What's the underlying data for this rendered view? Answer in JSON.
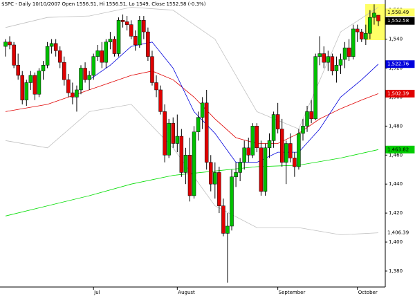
{
  "chart_data": {
    "type": "candlestick",
    "title": "$SPC - Daily 10/10/2007 Open 1556.51, Hi 1556.51, Lo 1549, Close 1552.58 (-0.3%)",
    "ylim": [
      1369,
      1567
    ],
    "yticks": [
      {
        "value": 1380,
        "label": "1,380"
      },
      {
        "value": 1400,
        "label": "1,400"
      },
      {
        "value": 1420,
        "label": "1,420"
      },
      {
        "value": 1440,
        "label": "1,440"
      },
      {
        "value": 1460,
        "label": "1,460"
      },
      {
        "value": 1480,
        "label": "1,480"
      },
      {
        "value": 1500,
        "label": "1,500"
      },
      {
        "value": 1520,
        "label": "1,520"
      },
      {
        "value": 1540,
        "label": "1,540"
      },
      {
        "value": 1560,
        "label": "1,560"
      }
    ],
    "categories": [
      null,
      null,
      null,
      null,
      null,
      null,
      null,
      null,
      null,
      null,
      null,
      null,
      null,
      null,
      null,
      null,
      null,
      null,
      null,
      null,
      null,
      "Jul",
      null,
      null,
      null,
      null,
      null,
      null,
      null,
      null,
      null,
      null,
      null,
      null,
      null,
      null,
      null,
      null,
      null,
      null,
      null,
      "August",
      null,
      null,
      null,
      null,
      null,
      null,
      null,
      null,
      null,
      null,
      null,
      null,
      null,
      null,
      null,
      null,
      null,
      null,
      null,
      null,
      null,
      null,
      null,
      "September",
      null,
      null,
      null,
      null,
      null,
      null,
      null,
      null,
      null,
      null,
      null,
      null,
      null,
      null,
      null,
      null,
      null,
      null,
      "October",
      null,
      null,
      null,
      null,
      null
    ],
    "up_color": "#00c000",
    "down_color": "#e00000",
    "ohlc": [
      [
        1535,
        1540,
        1528,
        1538
      ],
      [
        1538,
        1542,
        1533,
        1536
      ],
      [
        1536,
        1538,
        1520,
        1522
      ],
      [
        1522,
        1530,
        1512,
        1515
      ],
      [
        1515,
        1518,
        1495,
        1498
      ],
      [
        1498,
        1512,
        1494,
        1510
      ],
      [
        1510,
        1518,
        1505,
        1515
      ],
      [
        1515,
        1517,
        1498,
        1502
      ],
      [
        1502,
        1520,
        1500,
        1518
      ],
      [
        1518,
        1525,
        1512,
        1522
      ],
      [
        1522,
        1538,
        1520,
        1535
      ],
      [
        1535,
        1540,
        1530,
        1537
      ],
      [
        1537,
        1540,
        1528,
        1532
      ],
      [
        1532,
        1535,
        1520,
        1524
      ],
      [
        1524,
        1528,
        1508,
        1512
      ],
      [
        1512,
        1516,
        1500,
        1503
      ],
      [
        1503,
        1510,
        1495,
        1500
      ],
      [
        1500,
        1508,
        1490,
        1505
      ],
      [
        1505,
        1522,
        1502,
        1520
      ],
      [
        1520,
        1524,
        1510,
        1512
      ],
      [
        1512,
        1518,
        1505,
        1515
      ],
      [
        1515,
        1530,
        1512,
        1528
      ],
      [
        1528,
        1536,
        1525,
        1532
      ],
      [
        1532,
        1538,
        1520,
        1524
      ],
      [
        1524,
        1540,
        1520,
        1538
      ],
      [
        1538,
        1545,
        1533,
        1540
      ],
      [
        1540,
        1542,
        1528,
        1530
      ],
      [
        1530,
        1555,
        1528,
        1553
      ],
      [
        1553,
        1557,
        1548,
        1552
      ],
      [
        1552,
        1556,
        1546,
        1550
      ],
      [
        1550,
        1553,
        1540,
        1542
      ],
      [
        1542,
        1546,
        1532,
        1536
      ],
      [
        1536,
        1556,
        1534,
        1553
      ],
      [
        1553,
        1556,
        1540,
        1545
      ],
      [
        1545,
        1548,
        1525,
        1528
      ],
      [
        1528,
        1532,
        1508,
        1510
      ],
      [
        1510,
        1515,
        1500,
        1505
      ],
      [
        1505,
        1508,
        1488,
        1490
      ],
      [
        1490,
        1495,
        1455,
        1460
      ],
      [
        1460,
        1485,
        1458,
        1482
      ],
      [
        1482,
        1486,
        1465,
        1468
      ],
      [
        1468,
        1488,
        1462,
        1473
      ],
      [
        1473,
        1478,
        1445,
        1448
      ],
      [
        1448,
        1465,
        1440,
        1460
      ],
      [
        1460,
        1472,
        1428,
        1432
      ],
      [
        1432,
        1480,
        1430,
        1476
      ],
      [
        1476,
        1490,
        1470,
        1486
      ],
      [
        1486,
        1500,
        1478,
        1496
      ],
      [
        1496,
        1505,
        1450,
        1455
      ],
      [
        1455,
        1460,
        1435,
        1440
      ],
      [
        1440,
        1455,
        1430,
        1448
      ],
      [
        1448,
        1452,
        1420,
        1425
      ],
      [
        1425,
        1430,
        1404,
        1406
      ],
      [
        1406,
        1420,
        1372,
        1411
      ],
      [
        1411,
        1450,
        1408,
        1445
      ],
      [
        1445,
        1455,
        1438,
        1448
      ],
      [
        1448,
        1458,
        1442,
        1455
      ],
      [
        1455,
        1470,
        1450,
        1465
      ],
      [
        1465,
        1472,
        1455,
        1460
      ],
      [
        1460,
        1482,
        1458,
        1480
      ],
      [
        1480,
        1482,
        1462,
        1465
      ],
      [
        1465,
        1470,
        1432,
        1435
      ],
      [
        1435,
        1468,
        1432,
        1465
      ],
      [
        1465,
        1475,
        1458,
        1470
      ],
      [
        1470,
        1490,
        1465,
        1488
      ],
      [
        1488,
        1496,
        1475,
        1478
      ],
      [
        1478,
        1485,
        1452,
        1455
      ],
      [
        1455,
        1470,
        1440,
        1468
      ],
      [
        1468,
        1475,
        1455,
        1458
      ],
      [
        1458,
        1462,
        1445,
        1452
      ],
      [
        1452,
        1478,
        1450,
        1475
      ],
      [
        1475,
        1485,
        1470,
        1480
      ],
      [
        1480,
        1494,
        1476,
        1490
      ],
      [
        1490,
        1498,
        1482,
        1485
      ],
      [
        1485,
        1530,
        1484,
        1528
      ],
      [
        1528,
        1542,
        1522,
        1530
      ],
      [
        1530,
        1535,
        1520,
        1524
      ],
      [
        1524,
        1532,
        1518,
        1528
      ],
      [
        1528,
        1530,
        1515,
        1518
      ],
      [
        1518,
        1528,
        1510,
        1522
      ],
      [
        1522,
        1530,
        1516,
        1526
      ],
      [
        1526,
        1538,
        1520,
        1534
      ],
      [
        1534,
        1540,
        1525,
        1528
      ],
      [
        1528,
        1550,
        1526,
        1547
      ],
      [
        1547,
        1550,
        1538,
        1545
      ],
      [
        1545,
        1547,
        1538,
        1540
      ],
      [
        1540,
        1550,
        1536,
        1544
      ],
      [
        1544,
        1560,
        1540,
        1555
      ],
      [
        1555,
        1564,
        1550,
        1558
      ],
      [
        1556.51,
        1556.51,
        1549,
        1552.58
      ]
    ],
    "overlays": [
      {
        "color": "#c0c0c0",
        "x": [
          0,
          10,
          20,
          30,
          40,
          50,
          60,
          70,
          80,
          89
        ],
        "values": [
          1548,
          1555,
          1556,
          1562,
          1560,
          1540,
          1490,
          1478,
          1545,
          1562
        ]
      },
      {
        "color": "#c0c0c0",
        "x": [
          0,
          10,
          20,
          30,
          40,
          50,
          60,
          70,
          80,
          89
        ],
        "values": [
          1470,
          1465,
          1490,
          1495,
          1465,
          1425,
          1410,
          1410,
          1405,
          1406.39
        ]
      },
      {
        "color": "#00dd00",
        "x": [
          0,
          10,
          20,
          30,
          40,
          50,
          60,
          70,
          80,
          89
        ],
        "values": [
          1418,
          1425,
          1432,
          1440,
          1446,
          1449,
          1452,
          1453,
          1458,
          1463.82
        ]
      },
      {
        "color": "#e00000",
        "x": [
          0,
          10,
          20,
          30,
          35,
          40,
          45,
          50,
          55,
          60,
          65,
          70,
          75,
          80,
          85,
          89
        ],
        "values": [
          1490,
          1495,
          1505,
          1515,
          1518,
          1512,
          1500,
          1485,
          1472,
          1468,
          1468,
          1475,
          1485,
          1492,
          1498,
          1502.39
        ]
      },
      {
        "color": "#0000dd",
        "x": [
          20,
          25,
          30,
          35,
          40,
          45,
          50,
          55,
          60,
          65,
          70,
          75,
          80,
          85,
          89
        ],
        "values": [
          1512,
          1522,
          1535,
          1538,
          1520,
          1490,
          1475,
          1455,
          1455,
          1462,
          1462,
          1478,
          1500,
          1512,
          1522.76
        ]
      }
    ],
    "price_labels": [
      {
        "value": 1558.49,
        "label": "1,558.49",
        "color": "#ffff66",
        "text_color": "#000000"
      },
      {
        "value": 1552.58,
        "label": "1,552.58",
        "color": "#000000",
        "text_color": "#ffffff"
      },
      {
        "value": 1522.76,
        "label": "1,522.76",
        "color": "#0000dd",
        "text_color": "#ffffff"
      },
      {
        "value": 1502.39,
        "label": "1,502.39",
        "color": "#e00000",
        "text_color": "#ffffff"
      },
      {
        "value": 1463.82,
        "label": "1,463.82",
        "color": "#00cc00",
        "text_color": "#000000"
      },
      {
        "value": 1406.39,
        "label": "1,406.39",
        "color": "#ffffff",
        "text_color": "#000000"
      }
    ]
  }
}
